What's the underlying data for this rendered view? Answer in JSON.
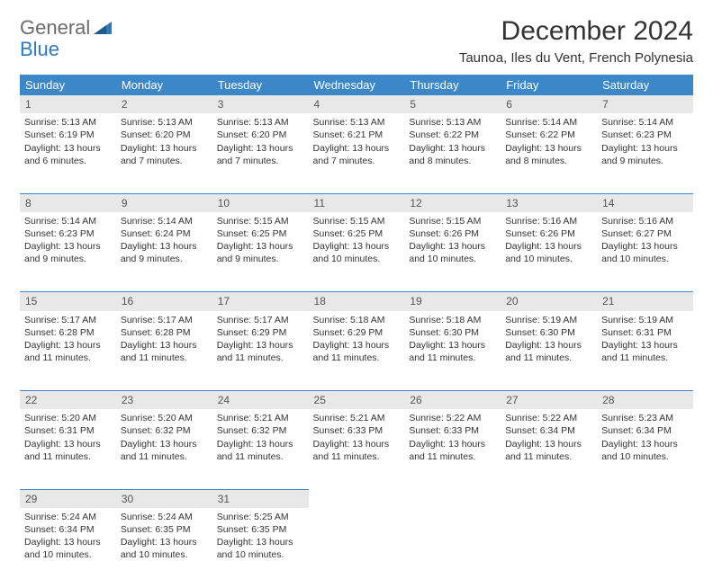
{
  "brand": {
    "name_part1": "General",
    "name_part2": "Blue",
    "color_main": "#6b6b6b",
    "color_accent": "#2f79b9"
  },
  "title": {
    "month": "December 2024",
    "location": "Taunoa, Iles du Vent, French Polynesia"
  },
  "style": {
    "header_bg": "#3b87c8",
    "header_fg": "#ffffff",
    "daynum_bg": "#e8e8e8",
    "daynum_fg": "#555555",
    "rule_color": "#3b87c8",
    "body_font_size": 10.5,
    "header_font_size": 13,
    "daynum_font_size": 12
  },
  "weekdays": [
    "Sunday",
    "Monday",
    "Tuesday",
    "Wednesday",
    "Thursday",
    "Friday",
    "Saturday"
  ],
  "weeks": [
    {
      "days": [
        {
          "num": "1",
          "sunrise": "Sunrise: 5:13 AM",
          "sunset": "Sunset: 6:19 PM",
          "daylight": "Daylight: 13 hours and 6 minutes."
        },
        {
          "num": "2",
          "sunrise": "Sunrise: 5:13 AM",
          "sunset": "Sunset: 6:20 PM",
          "daylight": "Daylight: 13 hours and 7 minutes."
        },
        {
          "num": "3",
          "sunrise": "Sunrise: 5:13 AM",
          "sunset": "Sunset: 6:20 PM",
          "daylight": "Daylight: 13 hours and 7 minutes."
        },
        {
          "num": "4",
          "sunrise": "Sunrise: 5:13 AM",
          "sunset": "Sunset: 6:21 PM",
          "daylight": "Daylight: 13 hours and 7 minutes."
        },
        {
          "num": "5",
          "sunrise": "Sunrise: 5:13 AM",
          "sunset": "Sunset: 6:22 PM",
          "daylight": "Daylight: 13 hours and 8 minutes."
        },
        {
          "num": "6",
          "sunrise": "Sunrise: 5:14 AM",
          "sunset": "Sunset: 6:22 PM",
          "daylight": "Daylight: 13 hours and 8 minutes."
        },
        {
          "num": "7",
          "sunrise": "Sunrise: 5:14 AM",
          "sunset": "Sunset: 6:23 PM",
          "daylight": "Daylight: 13 hours and 9 minutes."
        }
      ]
    },
    {
      "days": [
        {
          "num": "8",
          "sunrise": "Sunrise: 5:14 AM",
          "sunset": "Sunset: 6:23 PM",
          "daylight": "Daylight: 13 hours and 9 minutes."
        },
        {
          "num": "9",
          "sunrise": "Sunrise: 5:14 AM",
          "sunset": "Sunset: 6:24 PM",
          "daylight": "Daylight: 13 hours and 9 minutes."
        },
        {
          "num": "10",
          "sunrise": "Sunrise: 5:15 AM",
          "sunset": "Sunset: 6:25 PM",
          "daylight": "Daylight: 13 hours and 9 minutes."
        },
        {
          "num": "11",
          "sunrise": "Sunrise: 5:15 AM",
          "sunset": "Sunset: 6:25 PM",
          "daylight": "Daylight: 13 hours and 10 minutes."
        },
        {
          "num": "12",
          "sunrise": "Sunrise: 5:15 AM",
          "sunset": "Sunset: 6:26 PM",
          "daylight": "Daylight: 13 hours and 10 minutes."
        },
        {
          "num": "13",
          "sunrise": "Sunrise: 5:16 AM",
          "sunset": "Sunset: 6:26 PM",
          "daylight": "Daylight: 13 hours and 10 minutes."
        },
        {
          "num": "14",
          "sunrise": "Sunrise: 5:16 AM",
          "sunset": "Sunset: 6:27 PM",
          "daylight": "Daylight: 13 hours and 10 minutes."
        }
      ]
    },
    {
      "days": [
        {
          "num": "15",
          "sunrise": "Sunrise: 5:17 AM",
          "sunset": "Sunset: 6:28 PM",
          "daylight": "Daylight: 13 hours and 11 minutes."
        },
        {
          "num": "16",
          "sunrise": "Sunrise: 5:17 AM",
          "sunset": "Sunset: 6:28 PM",
          "daylight": "Daylight: 13 hours and 11 minutes."
        },
        {
          "num": "17",
          "sunrise": "Sunrise: 5:17 AM",
          "sunset": "Sunset: 6:29 PM",
          "daylight": "Daylight: 13 hours and 11 minutes."
        },
        {
          "num": "18",
          "sunrise": "Sunrise: 5:18 AM",
          "sunset": "Sunset: 6:29 PM",
          "daylight": "Daylight: 13 hours and 11 minutes."
        },
        {
          "num": "19",
          "sunrise": "Sunrise: 5:18 AM",
          "sunset": "Sunset: 6:30 PM",
          "daylight": "Daylight: 13 hours and 11 minutes."
        },
        {
          "num": "20",
          "sunrise": "Sunrise: 5:19 AM",
          "sunset": "Sunset: 6:30 PM",
          "daylight": "Daylight: 13 hours and 11 minutes."
        },
        {
          "num": "21",
          "sunrise": "Sunrise: 5:19 AM",
          "sunset": "Sunset: 6:31 PM",
          "daylight": "Daylight: 13 hours and 11 minutes."
        }
      ]
    },
    {
      "days": [
        {
          "num": "22",
          "sunrise": "Sunrise: 5:20 AM",
          "sunset": "Sunset: 6:31 PM",
          "daylight": "Daylight: 13 hours and 11 minutes."
        },
        {
          "num": "23",
          "sunrise": "Sunrise: 5:20 AM",
          "sunset": "Sunset: 6:32 PM",
          "daylight": "Daylight: 13 hours and 11 minutes."
        },
        {
          "num": "24",
          "sunrise": "Sunrise: 5:21 AM",
          "sunset": "Sunset: 6:32 PM",
          "daylight": "Daylight: 13 hours and 11 minutes."
        },
        {
          "num": "25",
          "sunrise": "Sunrise: 5:21 AM",
          "sunset": "Sunset: 6:33 PM",
          "daylight": "Daylight: 13 hours and 11 minutes."
        },
        {
          "num": "26",
          "sunrise": "Sunrise: 5:22 AM",
          "sunset": "Sunset: 6:33 PM",
          "daylight": "Daylight: 13 hours and 11 minutes."
        },
        {
          "num": "27",
          "sunrise": "Sunrise: 5:22 AM",
          "sunset": "Sunset: 6:34 PM",
          "daylight": "Daylight: 13 hours and 11 minutes."
        },
        {
          "num": "28",
          "sunrise": "Sunrise: 5:23 AM",
          "sunset": "Sunset: 6:34 PM",
          "daylight": "Daylight: 13 hours and 10 minutes."
        }
      ]
    },
    {
      "days": [
        {
          "num": "29",
          "sunrise": "Sunrise: 5:24 AM",
          "sunset": "Sunset: 6:34 PM",
          "daylight": "Daylight: 13 hours and 10 minutes."
        },
        {
          "num": "30",
          "sunrise": "Sunrise: 5:24 AM",
          "sunset": "Sunset: 6:35 PM",
          "daylight": "Daylight: 13 hours and 10 minutes."
        },
        {
          "num": "31",
          "sunrise": "Sunrise: 5:25 AM",
          "sunset": "Sunset: 6:35 PM",
          "daylight": "Daylight: 13 hours and 10 minutes."
        },
        null,
        null,
        null,
        null
      ]
    }
  ]
}
